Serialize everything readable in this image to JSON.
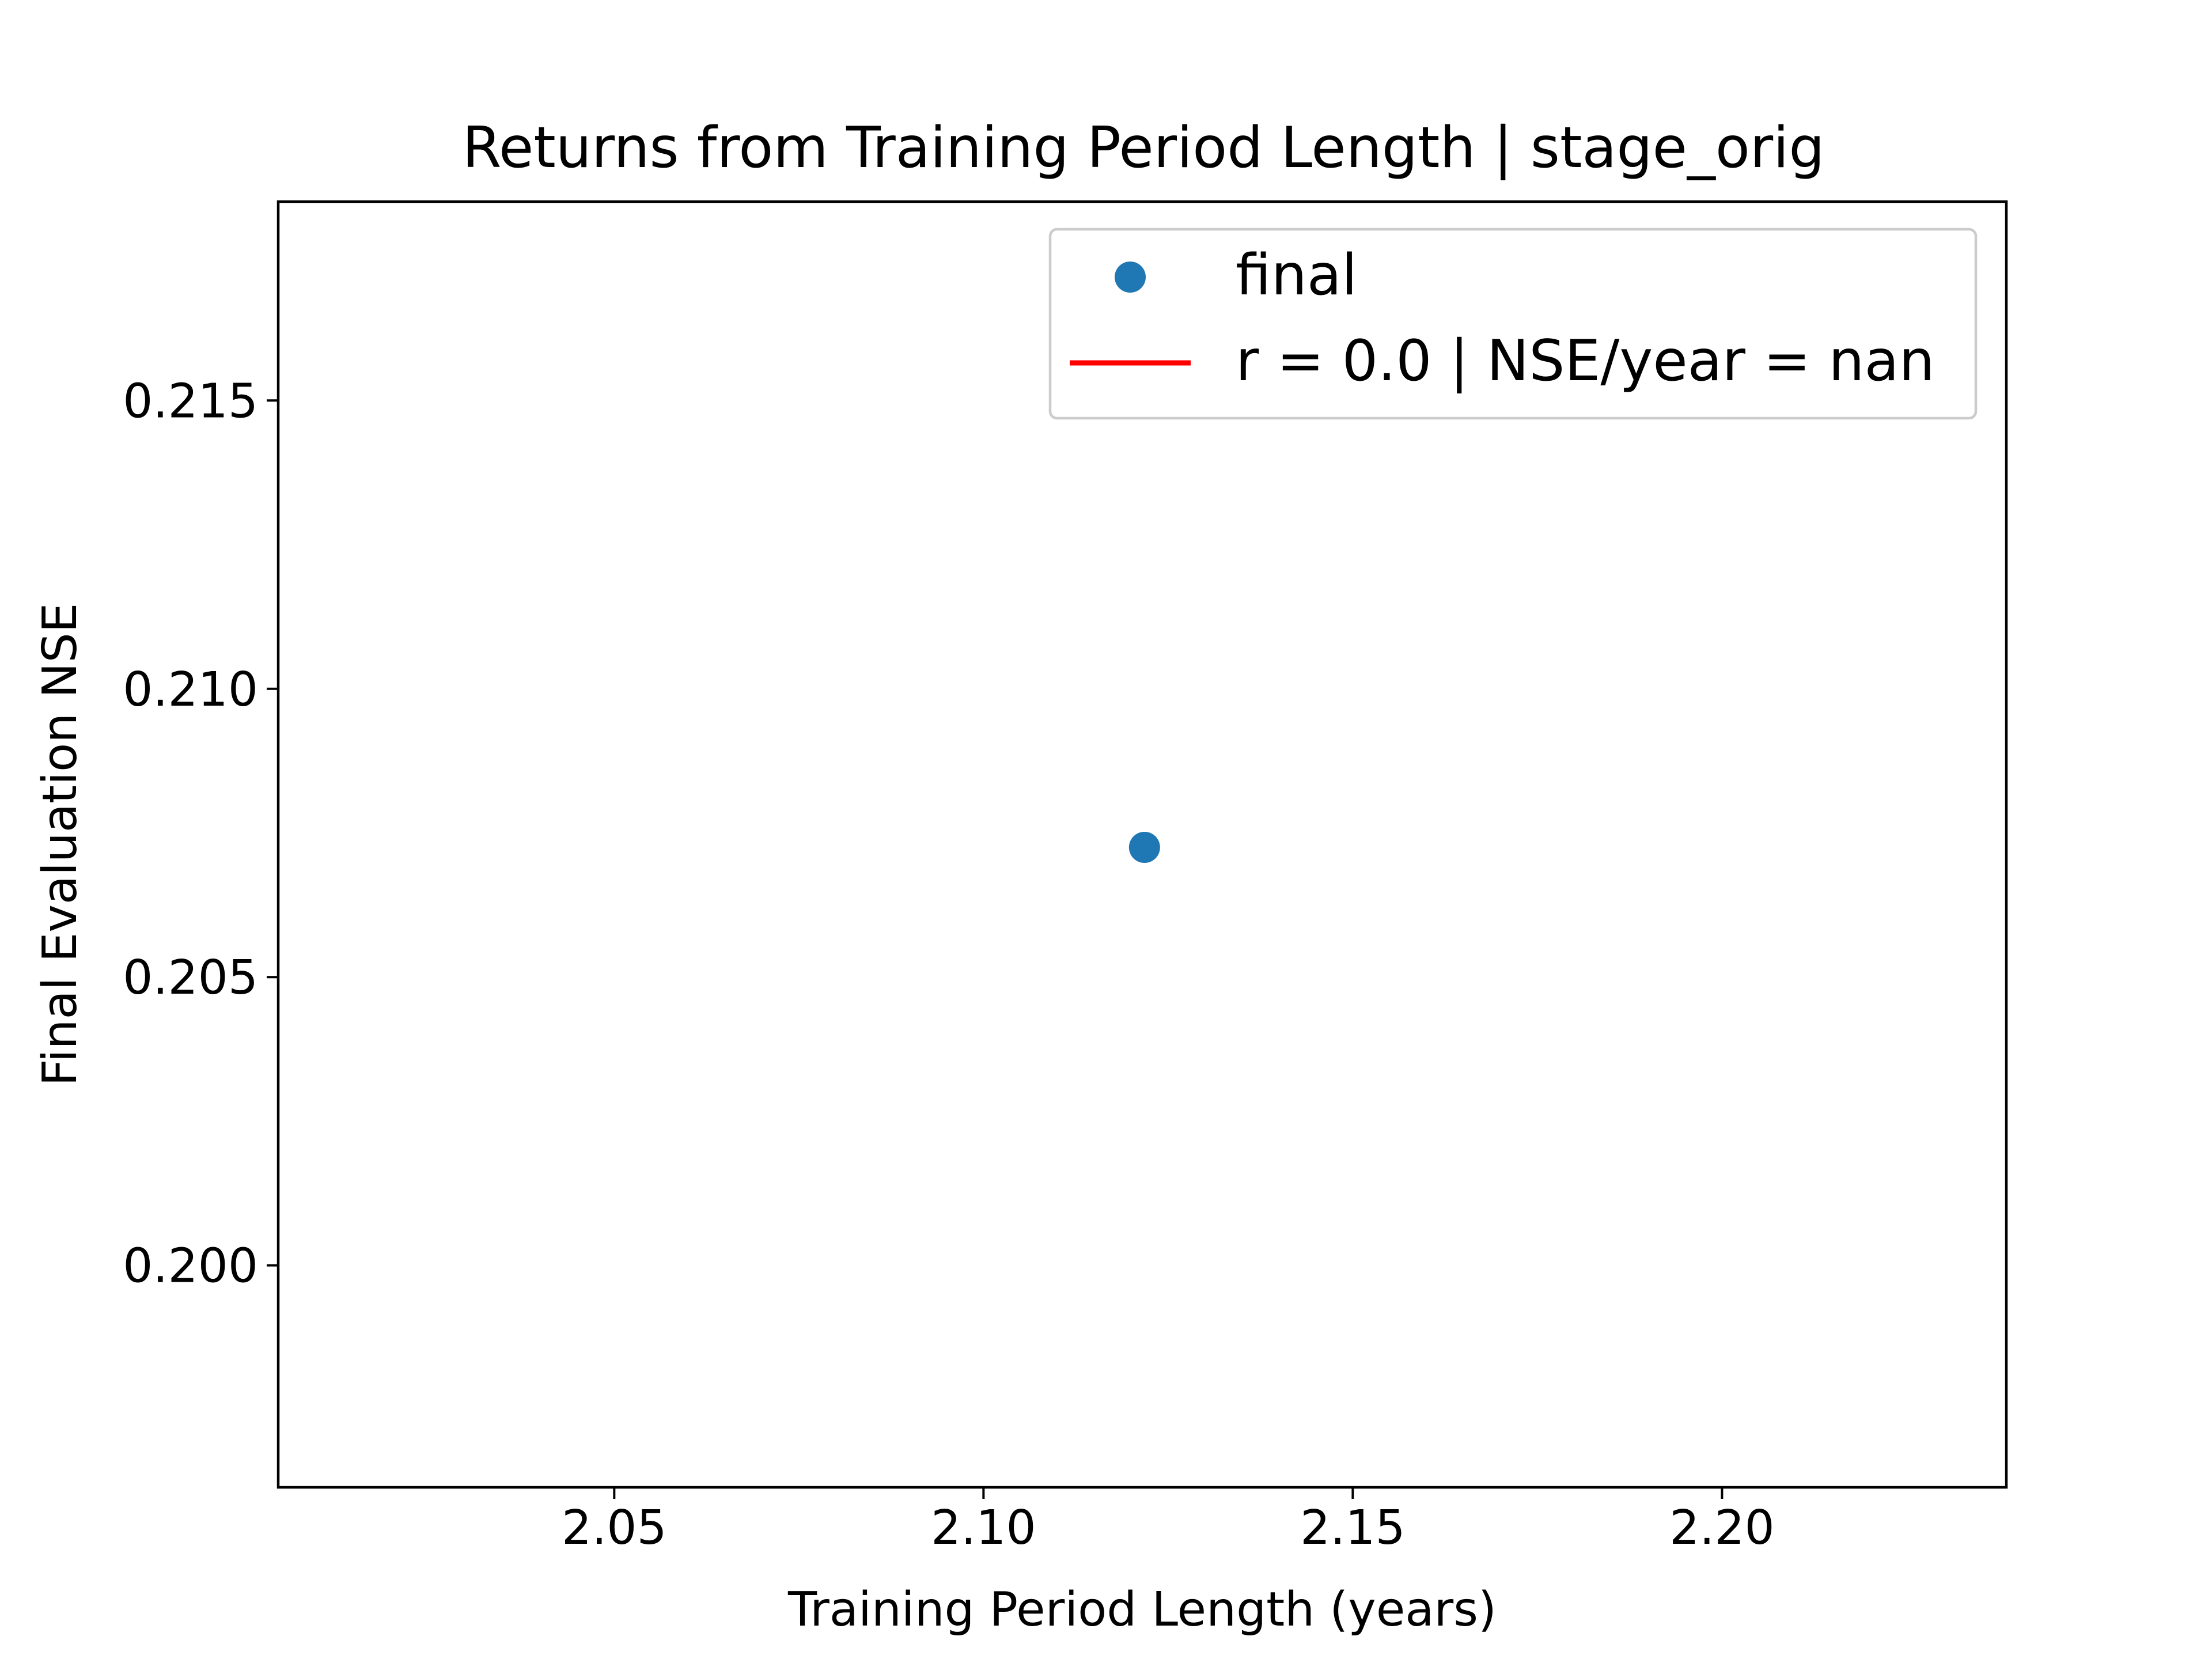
{
  "chart_data": {
    "type": "scatter",
    "title": "Returns from Training Period Length | stage_orig",
    "xlabel": "Training Period Length (years)",
    "ylabel": "Final Evaluation NSE",
    "xlim": [
      2.0045,
      2.2385
    ],
    "ylim": [
      0.19615,
      0.21845
    ],
    "xticks": [
      2.05,
      2.1,
      2.15,
      2.2
    ],
    "xtick_labels": [
      "2.05",
      "2.10",
      "2.15",
      "2.20"
    ],
    "yticks": [
      0.2,
      0.205,
      0.21,
      0.215
    ],
    "ytick_labels": [
      "0.200",
      "0.205",
      "0.210",
      "0.215"
    ],
    "grid": false,
    "legend_position": "top-right",
    "series": [
      {
        "name": "final",
        "kind": "points",
        "color": "#1f77b4",
        "points": [
          {
            "x": 2.1218,
            "y": 0.20725
          }
        ]
      },
      {
        "name": "r = 0.0 | NSE/year = nan",
        "kind": "line",
        "color": "#ff0000",
        "points": []
      }
    ]
  }
}
